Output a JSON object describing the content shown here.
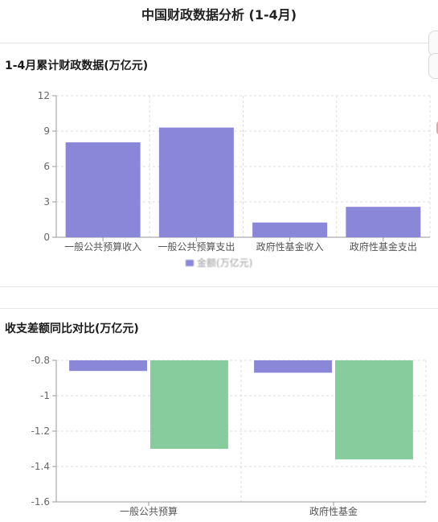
{
  "page_title": "中国财政数据分析 (1-4月)",
  "colors": {
    "bar_primary": "#8a86d8",
    "bar_secondary": "#86cc9c",
    "grid": "#dddddd",
    "axis": "#999999"
  },
  "section1": {
    "title": "1-4月累计财政数据(万亿元)",
    "legend_label": "金额(万亿元)"
  },
  "section2": {
    "title": "收支差额同比对比(万亿元)"
  },
  "chart_data": [
    {
      "type": "bar",
      "categories": [
        "一般公共预算收入",
        "一般公共预算支出",
        "政府性基金收入",
        "政府性基金支出"
      ],
      "series": [
        {
          "name": "金额(万亿元)",
          "values": [
            8.05,
            9.3,
            1.25,
            2.58
          ]
        }
      ],
      "ylim": [
        0,
        12
      ],
      "yticks": [
        "0",
        "3",
        "6",
        "9",
        "12"
      ],
      "grid": true,
      "legend": "bottom-center"
    },
    {
      "type": "bar",
      "categories": [
        "一般公共预算",
        "政府性基金"
      ],
      "series": [
        {
          "values": [
            -0.86,
            -0.87
          ]
        },
        {
          "values": [
            -1.3,
            -1.36
          ]
        }
      ],
      "ylim": [
        -1.6,
        -0.8
      ],
      "yticks": [
        "-0.8",
        "-1",
        "-1.2",
        "-1.4",
        "-1.6"
      ],
      "grid": true
    }
  ]
}
